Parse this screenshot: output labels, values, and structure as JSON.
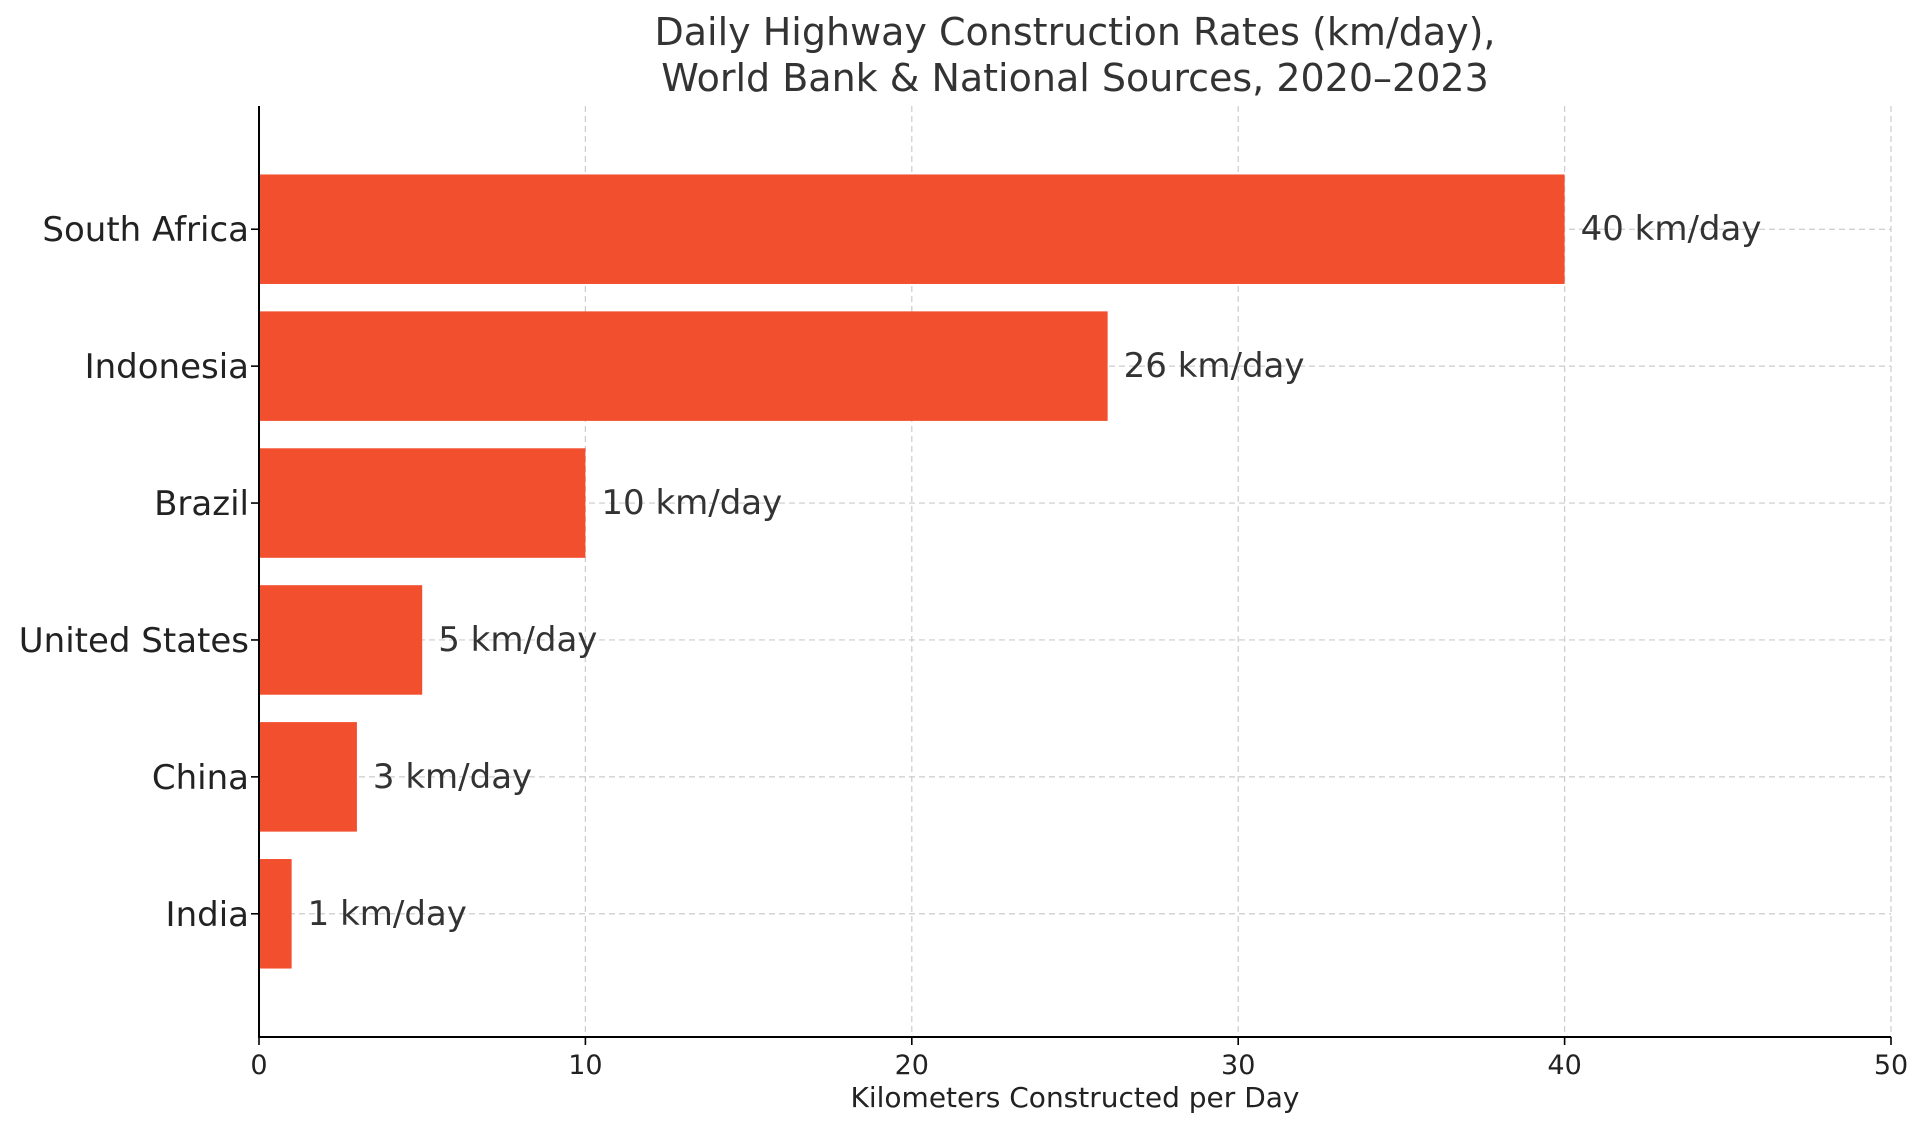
{
  "chart_data": {
    "type": "bar",
    "orientation": "horizontal",
    "title_lines": [
      "Daily Highway Construction Rates (km/day),",
      "World Bank & National Sources, 2020–2023"
    ],
    "xlabel": "Kilometers Constructed per Day",
    "ylabel": "",
    "xlim": [
      0,
      50
    ],
    "xticks": [
      0,
      10,
      20,
      30,
      40,
      50
    ],
    "grid": true,
    "categories": [
      "South Africa",
      "Indonesia",
      "Brazil",
      "United States",
      "China",
      "India"
    ],
    "values": [
      40,
      26,
      10,
      5,
      3,
      1
    ],
    "value_labels": [
      "40 km/day",
      "26 km/day",
      "10 km/day",
      "5 km/day",
      "3 km/day",
      "1 km/day"
    ],
    "colors": {
      "bar": "#f24f2f"
    }
  }
}
